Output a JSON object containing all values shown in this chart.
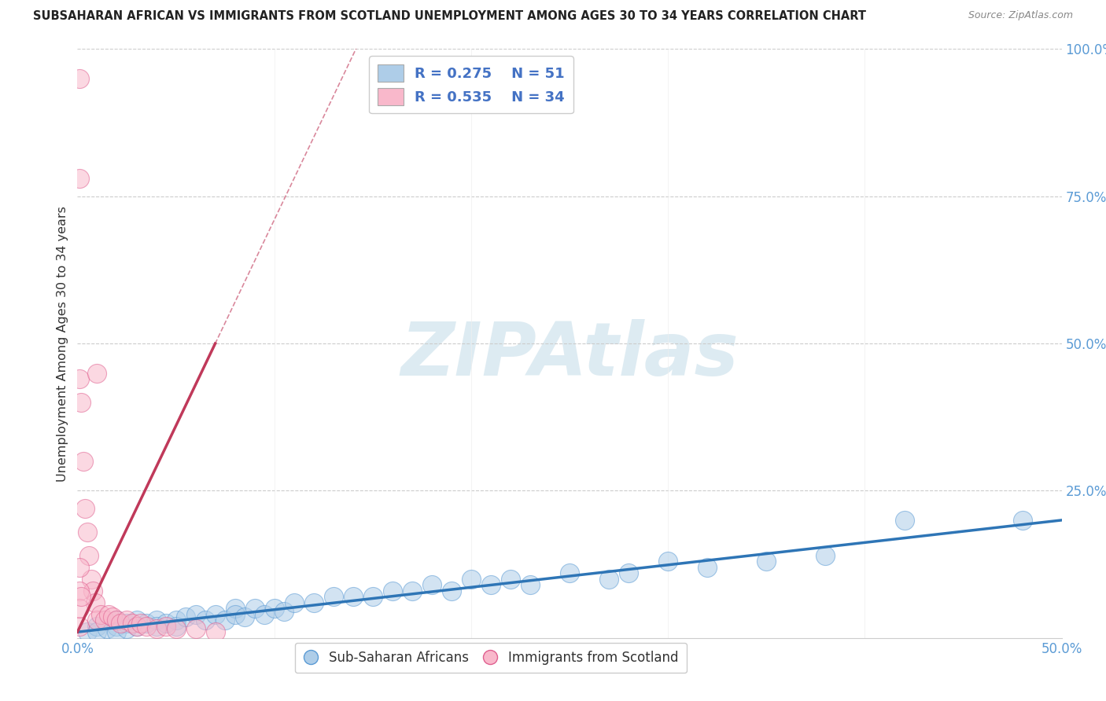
{
  "title": "SUBSAHARAN AFRICAN VS IMMIGRANTS FROM SCOTLAND UNEMPLOYMENT AMONG AGES 30 TO 34 YEARS CORRELATION CHART",
  "source": "Source: ZipAtlas.com",
  "ylabel": "Unemployment Among Ages 30 to 34 years",
  "xlim": [
    0,
    0.5
  ],
  "ylim": [
    0,
    1.0
  ],
  "legend_r1": "R = 0.275",
  "legend_n1": "N = 51",
  "legend_r2": "R = 0.535",
  "legend_n2": "N = 34",
  "color_blue": "#aecde8",
  "color_pink": "#f9b8cb",
  "edge_color_blue": "#5b9bd5",
  "edge_color_pink": "#e06090",
  "line_color_blue": "#2e75b6",
  "line_color_pink": "#c0395a",
  "watermark": "ZIPAtlas",
  "blue_x": [
    0.005,
    0.01,
    0.01,
    0.015,
    0.02,
    0.02,
    0.02,
    0.025,
    0.025,
    0.03,
    0.03,
    0.035,
    0.04,
    0.04,
    0.045,
    0.05,
    0.05,
    0.055,
    0.06,
    0.065,
    0.07,
    0.075,
    0.08,
    0.08,
    0.085,
    0.09,
    0.095,
    0.1,
    0.105,
    0.11,
    0.12,
    0.13,
    0.14,
    0.15,
    0.16,
    0.17,
    0.18,
    0.19,
    0.2,
    0.21,
    0.22,
    0.23,
    0.25,
    0.27,
    0.28,
    0.3,
    0.32,
    0.35,
    0.38,
    0.42,
    0.48
  ],
  "blue_y": [
    0.01,
    0.02,
    0.01,
    0.015,
    0.02,
    0.03,
    0.01,
    0.025,
    0.015,
    0.02,
    0.03,
    0.025,
    0.03,
    0.02,
    0.025,
    0.03,
    0.02,
    0.035,
    0.04,
    0.03,
    0.04,
    0.03,
    0.05,
    0.04,
    0.035,
    0.05,
    0.04,
    0.05,
    0.045,
    0.06,
    0.06,
    0.07,
    0.07,
    0.07,
    0.08,
    0.08,
    0.09,
    0.08,
    0.1,
    0.09,
    0.1,
    0.09,
    0.11,
    0.1,
    0.11,
    0.13,
    0.12,
    0.13,
    0.14,
    0.2,
    0.2
  ],
  "pink_x": [
    0.001,
    0.001,
    0.001,
    0.001,
    0.002,
    0.003,
    0.004,
    0.005,
    0.006,
    0.007,
    0.008,
    0.009,
    0.01,
    0.01,
    0.012,
    0.014,
    0.016,
    0.018,
    0.02,
    0.022,
    0.025,
    0.028,
    0.03,
    0.032,
    0.035,
    0.04,
    0.045,
    0.05,
    0.06,
    0.07,
    0.001,
    0.001,
    0.001,
    0.002
  ],
  "pink_y": [
    0.95,
    0.78,
    0.44,
    0.02,
    0.4,
    0.3,
    0.22,
    0.18,
    0.14,
    0.1,
    0.08,
    0.06,
    0.45,
    0.03,
    0.04,
    0.03,
    0.04,
    0.035,
    0.03,
    0.025,
    0.03,
    0.025,
    0.02,
    0.025,
    0.02,
    0.015,
    0.02,
    0.015,
    0.015,
    0.01,
    0.12,
    0.08,
    0.05,
    0.07
  ]
}
